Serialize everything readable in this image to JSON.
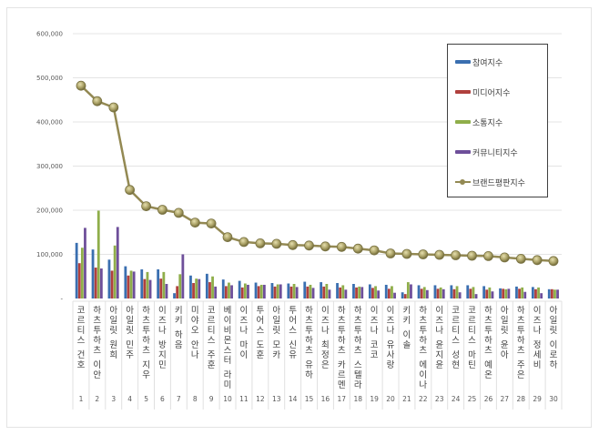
{
  "chart_data": {
    "type": "bar+line",
    "title": "",
    "xlabel": "",
    "ylabel": "",
    "ylim": [
      0,
      600000
    ],
    "y_ticks": [
      "-",
      "100,000",
      "200,000",
      "300,000",
      "400,000",
      "500,000",
      "600,000"
    ],
    "grid": true,
    "legend_position": "upper-right (inside)",
    "categories": [
      {
        "rank": "1",
        "name": "코르티스 건호"
      },
      {
        "rank": "2",
        "name": "하츠투하츠 이안"
      },
      {
        "rank": "3",
        "name": "아일릿 원희"
      },
      {
        "rank": "4",
        "name": "아일릿 민주"
      },
      {
        "rank": "5",
        "name": "하츠투하츠 지우"
      },
      {
        "rank": "6",
        "name": "이즈나 방지민"
      },
      {
        "rank": "7",
        "name": "키키 하음"
      },
      {
        "rank": "8",
        "name": "미야오 안나"
      },
      {
        "rank": "9",
        "name": "코르티스 주훈"
      },
      {
        "rank": "10",
        "name": "베이비몬스터 라미"
      },
      {
        "rank": "11",
        "name": "이즈나 마이"
      },
      {
        "rank": "12",
        "name": "투어스 도훈"
      },
      {
        "rank": "13",
        "name": "아일릿 모카"
      },
      {
        "rank": "14",
        "name": "투어스 신유"
      },
      {
        "rank": "15",
        "name": "하츠투하츠 유하"
      },
      {
        "rank": "16",
        "name": "이즈나 최정은"
      },
      {
        "rank": "17",
        "name": "하츠투하츠 카르멘"
      },
      {
        "rank": "18",
        "name": "하츠투하츠 스텔라"
      },
      {
        "rank": "19",
        "name": "이즈나 코코"
      },
      {
        "rank": "20",
        "name": "이즈나 유사랑"
      },
      {
        "rank": "21",
        "name": "키키 이솔"
      },
      {
        "rank": "22",
        "name": "하츠투하츠 에이나"
      },
      {
        "rank": "23",
        "name": "이즈나 윤지윤"
      },
      {
        "rank": "24",
        "name": "코르티스 성현"
      },
      {
        "rank": "25",
        "name": "코르티스 마틴"
      },
      {
        "rank": "26",
        "name": "하츠투하츠 예온"
      },
      {
        "rank": "27",
        "name": "아일릿 윤아"
      },
      {
        "rank": "28",
        "name": "하츠투하츠 주은"
      },
      {
        "rank": "29",
        "name": "이즈나 정세비"
      },
      {
        "rank": "30",
        "name": "아일릿 이로하"
      }
    ],
    "series": [
      {
        "name": "참여지수",
        "type": "bar",
        "color": "#3a6fb0",
        "values": [
          126000,
          111000,
          88000,
          73000,
          66000,
          66000,
          12000,
          52000,
          56000,
          43000,
          40000,
          36000,
          35000,
          34000,
          38000,
          37000,
          35000,
          33000,
          32000,
          31000,
          14000,
          30000,
          30000,
          30000,
          30000,
          28000,
          23000,
          27000,
          26000,
          21000
        ]
      },
      {
        "name": "미디어지수",
        "type": "bar",
        "color": "#b0403d",
        "values": [
          80000,
          70000,
          63000,
          52000,
          44000,
          45000,
          28000,
          35000,
          37000,
          28000,
          25000,
          28000,
          27000,
          27000,
          27000,
          27000,
          25000,
          25000,
          24000,
          22000,
          10000,
          22000,
          22000,
          21000,
          22000,
          20000,
          22000,
          22000,
          21000,
          21000
        ]
      },
      {
        "name": "소통지수",
        "type": "bar",
        "color": "#8fae4a",
        "values": [
          115000,
          199000,
          120000,
          63000,
          60000,
          60000,
          55000,
          45000,
          50000,
          36000,
          34000,
          31000,
          32000,
          33000,
          31000,
          33000,
          30000,
          27000,
          28000,
          28000,
          37000,
          26000,
          25000,
          28000,
          26000,
          25000,
          21000,
          25000,
          25000,
          20000
        ]
      },
      {
        "name": "커뮤니티지수",
        "type": "bar",
        "color": "#6e4f9a",
        "values": [
          160000,
          68000,
          162000,
          61000,
          42000,
          33000,
          100000,
          44000,
          27000,
          30000,
          31000,
          31000,
          32000,
          26000,
          24000,
          20000,
          20000,
          26000,
          18000,
          13000,
          32000,
          19000,
          21000,
          14000,
          10000,
          16000,
          22000,
          15000,
          12000,
          20000
        ]
      },
      {
        "name": "브랜드평판지수",
        "type": "line",
        "color": "#938953",
        "values": [
          482000,
          447000,
          433000,
          246000,
          209000,
          201000,
          194000,
          172000,
          170000,
          139000,
          128000,
          125000,
          124000,
          121000,
          120000,
          118000,
          117000,
          113000,
          109000,
          102000,
          101000,
          100000,
          99000,
          98000,
          97000,
          96000,
          93000,
          90000,
          87000,
          85000
        ]
      }
    ]
  },
  "legend": {
    "items": [
      {
        "label": "참여지수",
        "color": "#3a6fb0",
        "kind": "bar"
      },
      {
        "label": "미디어지수",
        "color": "#b0403d",
        "kind": "bar"
      },
      {
        "label": "소통지수",
        "color": "#8fae4a",
        "kind": "bar"
      },
      {
        "label": "커뮤니티지수",
        "color": "#6e4f9a",
        "kind": "bar"
      },
      {
        "label": "브랜드평판지수",
        "color": "#938953",
        "kind": "line"
      }
    ]
  }
}
